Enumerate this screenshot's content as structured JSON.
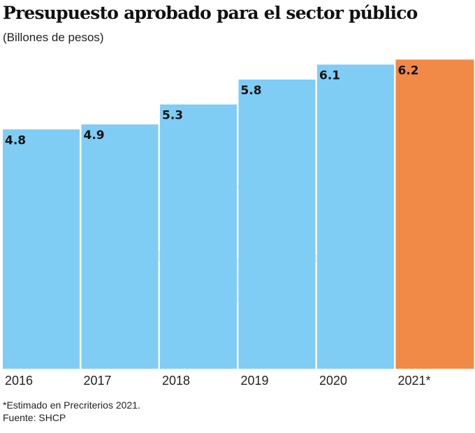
{
  "chart_data": {
    "type": "bar",
    "title": "Presupuesto aprobado para el sector público",
    "subtitle": "(Billones de pesos)",
    "categories": [
      "2016",
      "2017",
      "2018",
      "2019",
      "2020",
      "2021*"
    ],
    "values": [
      4.8,
      4.9,
      5.3,
      5.8,
      6.1,
      6.2
    ],
    "value_labels": [
      "4.8",
      "4.9",
      "5.3",
      "5.8",
      "6.1",
      "6.2"
    ],
    "ylim": [
      0,
      6.3
    ],
    "grid": false,
    "colors": {
      "default": "#7fcdf5",
      "highlight": "#f28a47"
    },
    "highlight_category": "2021*",
    "footnote": "*Estimado en Precriterios 2021.",
    "source": "Fuente: SHCP"
  }
}
